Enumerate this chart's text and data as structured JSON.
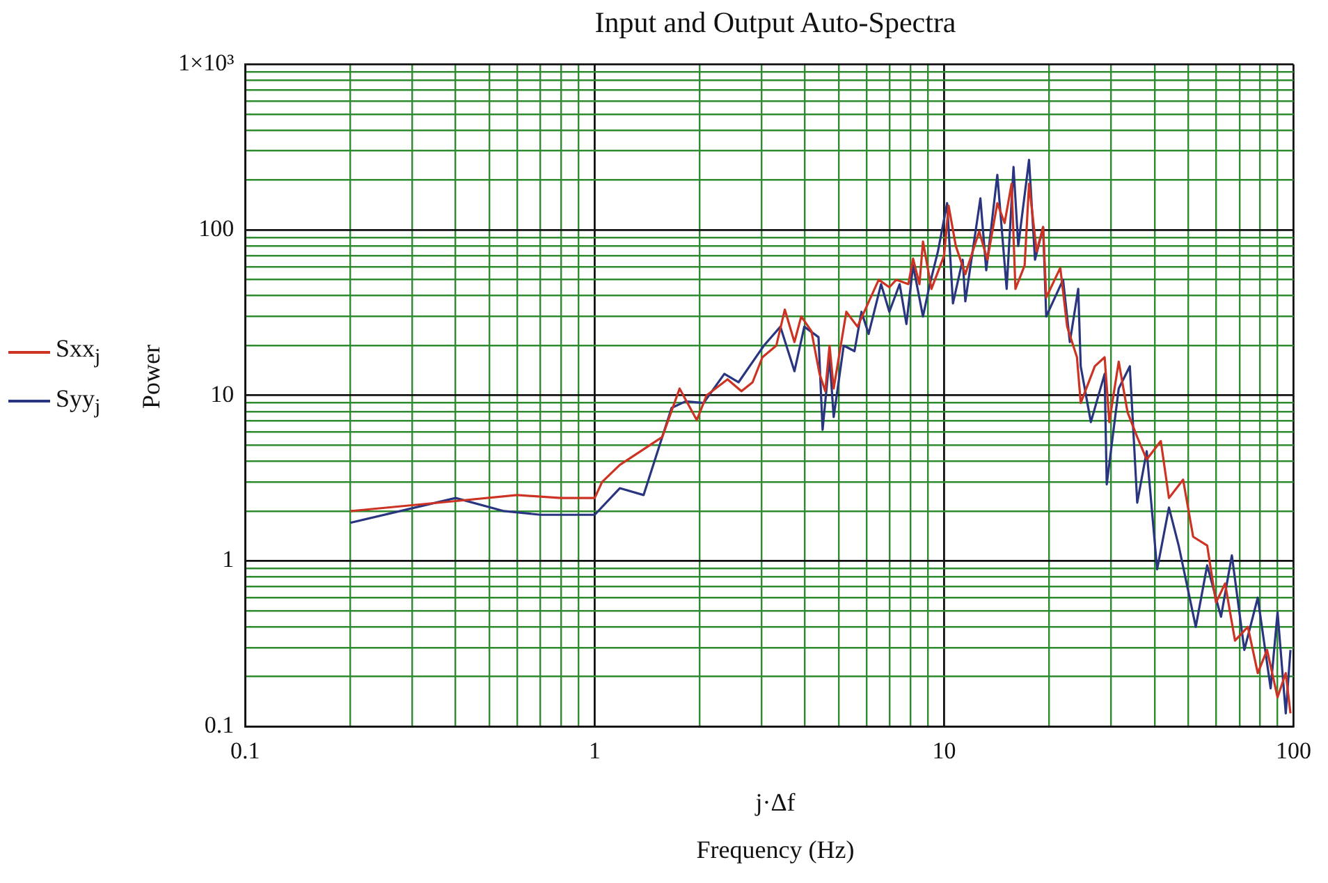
{
  "chart_data": {
    "type": "line",
    "title": "Input and Output Auto-Spectra",
    "xlabel": "Frequency (Hz)",
    "ylabel": "Power",
    "annotations": [
      "j·Δf"
    ],
    "log": "xy",
    "grid": true,
    "legend": "left",
    "xlim": [
      0.1,
      100
    ],
    "xticks": [
      0.1,
      {
        "value": 0.2,
        "label": null
      },
      {
        "value": 0.3,
        "label": null
      },
      {
        "value": 0.4,
        "label": null
      },
      {
        "value": 0.5,
        "label": null
      },
      {
        "value": 0.6,
        "label": null
      },
      {
        "value": 0.7,
        "label": null
      },
      {
        "value": 0.8,
        "label": null
      },
      {
        "value": 0.9,
        "label": null
      },
      1,
      {
        "value": 2,
        "label": null
      },
      {
        "value": 3,
        "label": null
      },
      {
        "value": 4,
        "label": null
      },
      {
        "value": 5,
        "label": null
      },
      {
        "value": 6,
        "label": null
      },
      {
        "value": 7,
        "label": null
      },
      {
        "value": 8,
        "label": null
      },
      {
        "value": 9,
        "label": null
      },
      10,
      {
        "value": 20,
        "label": null
      },
      {
        "value": 30,
        "label": null
      },
      {
        "value": 40,
        "label": null
      },
      {
        "value": 50,
        "label": null
      },
      {
        "value": 60,
        "label": null
      },
      {
        "value": 70,
        "label": null
      },
      {
        "value": 80,
        "label": null
      },
      {
        "value": 90,
        "label": null
      },
      100
    ],
    "ylim": [
      0.1,
      1000
    ],
    "yticks": [
      0.1,
      {
        "value": 0.2,
        "label": null
      },
      {
        "value": 0.3,
        "label": null
      },
      {
        "value": 0.4,
        "label": null
      },
      {
        "value": 0.5,
        "label": null
      },
      {
        "value": 0.6,
        "label": null
      },
      {
        "value": 0.7,
        "label": null
      },
      {
        "value": 0.8,
        "label": null
      },
      {
        "value": 0.9,
        "label": null
      },
      1,
      {
        "value": 2,
        "label": null
      },
      {
        "value": 3,
        "label": null
      },
      {
        "value": 4,
        "label": null
      },
      {
        "value": 5,
        "label": null
      },
      {
        "value": 6,
        "label": null
      },
      {
        "value": 7,
        "label": null
      },
      {
        "value": 8,
        "label": null
      },
      {
        "value": 9,
        "label": null
      },
      10,
      {
        "value": 20,
        "label": null
      },
      {
        "value": 30,
        "label": null
      },
      {
        "value": 40,
        "label": null
      },
      {
        "value": 50,
        "label": null
      },
      {
        "value": 60,
        "label": null
      },
      {
        "value": 70,
        "label": null
      },
      {
        "value": 80,
        "label": null
      },
      {
        "value": 90,
        "label": null
      },
      100,
      {
        "value": 200,
        "label": null
      },
      {
        "value": 300,
        "label": null
      },
      {
        "value": 400,
        "label": null
      },
      {
        "value": 500,
        "label": null
      },
      {
        "value": 600,
        "label": null
      },
      {
        "value": 700,
        "label": null
      },
      {
        "value": 800,
        "label": null
      },
      {
        "value": 900,
        "label": null
      },
      {
        "value": 1000,
        "label": "1×10³"
      }
    ],
    "series": [
      {
        "name": "Sxx$_{j}$",
        "color": "#cc3322",
        "x": [
          0.2,
          0.4,
          0.6,
          0.8,
          1.0,
          1.05,
          1.18,
          1.56,
          1.75,
          1.96,
          2.09,
          2.4,
          2.63,
          2.83,
          3.02,
          3.31,
          3.5,
          3.73,
          3.9,
          4.17,
          4.4,
          4.57,
          4.7,
          4.83,
          5.25,
          5.65,
          6.5,
          6.97,
          7.3,
          7.9,
          8.15,
          8.5,
          8.7,
          9.2,
          10,
          10.3,
          10.8,
          11.5,
          12.6,
          13.3,
          14.2,
          14.9,
          15.6,
          16,
          17,
          17.5,
          18.4,
          19.2,
          19.6,
          21.5,
          22.5,
          24,
          24.6,
          27,
          28.8,
          29.7,
          31.6,
          33.5,
          35.7,
          38,
          41.7,
          44,
          48.3,
          51.6,
          56.6,
          60,
          63.7,
          68,
          74,
          79,
          84,
          90,
          95,
          98
        ],
        "values": [
          2.0,
          2.3,
          2.5,
          2.4,
          2.4,
          3.0,
          3.8,
          5.6,
          11,
          7.1,
          10,
          12.5,
          10.6,
          12,
          17,
          20,
          33,
          21,
          30,
          24.5,
          13.5,
          10.6,
          20,
          11,
          32,
          26,
          50,
          45,
          50,
          47,
          67,
          47,
          85,
          44,
          70,
          140,
          80,
          54,
          98,
          66,
          145,
          110,
          190,
          44,
          61,
          190,
          74,
          104,
          39,
          59,
          26,
          17,
          9,
          15,
          17,
          6.9,
          16,
          7.9,
          5.6,
          4.1,
          5.3,
          2.4,
          3.1,
          1.4,
          1.24,
          0.56,
          0.73,
          0.33,
          0.4,
          0.21,
          0.29,
          0.15,
          0.21,
          0.12
        ]
      },
      {
        "name": "Syy$_{j}$",
        "color": "#2a3580",
        "x": [
          0.2,
          0.4,
          0.55,
          0.7,
          0.9,
          1.0,
          1.18,
          1.38,
          1.66,
          1.82,
          2.05,
          2.35,
          2.58,
          3.05,
          3.4,
          3.73,
          3.98,
          4.37,
          4.49,
          4.7,
          4.83,
          5.16,
          5.54,
          5.8,
          6.08,
          6.6,
          6.97,
          7.46,
          7.8,
          8.15,
          8.7,
          9.1,
          9.6,
          10.2,
          10.6,
          11.3,
          11.5,
          12.7,
          13.2,
          14.2,
          15.1,
          15.8,
          16.3,
          17.5,
          18.2,
          19.2,
          19.6,
          21.9,
          22.9,
          24.2,
          24.6,
          26.3,
          28.8,
          29.2,
          31.6,
          34,
          35.7,
          38,
          40.7,
          44,
          46.9,
          52.5,
          56.6,
          62,
          66.6,
          72.3,
          79,
          86,
          90,
          95,
          98
        ],
        "values": [
          1.7,
          2.4,
          2.0,
          1.9,
          1.9,
          1.9,
          2.75,
          2.5,
          8.4,
          9.2,
          9,
          13.5,
          12,
          20,
          26,
          14,
          26,
          22.5,
          6.2,
          17,
          7.4,
          20,
          18.5,
          32,
          23.5,
          47,
          32,
          47,
          27,
          61,
          30,
          47,
          74,
          145,
          36,
          66,
          37,
          155,
          57,
          215,
          44,
          240,
          80,
          265,
          66,
          104,
          30,
          50,
          21,
          44,
          15,
          6.9,
          13.5,
          2.9,
          11,
          15,
          2.25,
          4.6,
          0.89,
          2.1,
          1.24,
          0.4,
          0.94,
          0.46,
          1.08,
          0.29,
          0.6,
          0.17,
          0.49,
          0.12,
          0.29
        ]
      }
    ]
  }
}
